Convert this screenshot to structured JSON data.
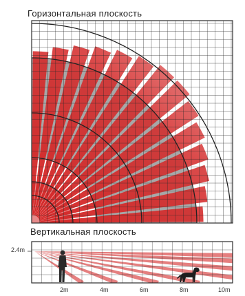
{
  "horizontal_plane": {
    "title": "Горизонтальная плоскость"
  },
  "vertical_plane": {
    "title": "Вертикальная плоскость",
    "height_label": "2.4m",
    "distance_labels": [
      "2m",
      "4m",
      "6m",
      "8m",
      "10m"
    ]
  },
  "colors": {
    "zone_red": "#d42a2a",
    "zone_fill_gray": "#a7a7a7",
    "grid": "#2b2b2b",
    "sensor_ring": "#222222"
  },
  "icons": {
    "person": "person-silhouette-icon",
    "dog": "dog-silhouette-icon"
  }
}
